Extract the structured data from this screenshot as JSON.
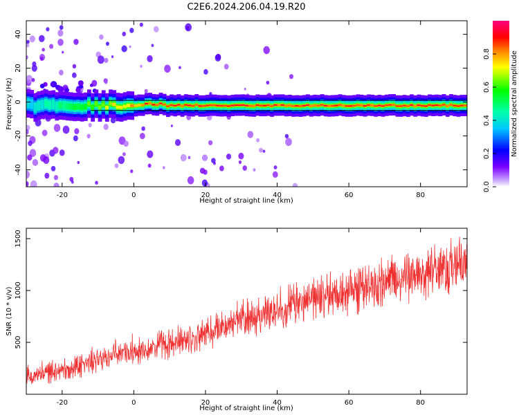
{
  "title": "C2E6.2024.206.04.19.R20",
  "colors": {
    "snr_line": "#f03030",
    "band_outline": "#000000",
    "axes": "#000000"
  },
  "chart_data": [
    {
      "type": "heatmap",
      "title": "",
      "xlabel": "Height of straight line (km)",
      "ylabel": "Frequency (Hz)",
      "xlim": [
        -30,
        93
      ],
      "ylim": [
        -50,
        48
      ],
      "xticks": [
        -20,
        0,
        20,
        40,
        60,
        80
      ],
      "yticks": [
        -40,
        -20,
        0,
        20,
        40
      ],
      "colormap": "rainbow (violet-blue-cyan-green-yellow-red-magenta)",
      "main_band": {
        "center_hz": -2,
        "outline_hz": [
          -5,
          1
        ],
        "x_range_km": [
          -30,
          93
        ],
        "peak_intensity": 0.95
      },
      "colorbar": {
        "label": "Normalized spectral amplitude",
        "range": [
          0,
          1
        ],
        "ticks": [
          0.0,
          0.2,
          0.4,
          0.6,
          0.8
        ]
      }
    },
    {
      "type": "line",
      "title": "",
      "xlabel": "Height of straight line (km)",
      "ylabel": "SNR (10 * v/v)",
      "xlim": [
        -30,
        93
      ],
      "ylim": [
        0,
        1600
      ],
      "xticks": [
        -20,
        0,
        20,
        40,
        60,
        80
      ],
      "yticks": [
        500,
        1000,
        1500
      ],
      "series": [
        {
          "x": [
            -30,
            -20,
            -10,
            0,
            10,
            20,
            30,
            40,
            50,
            60,
            70,
            80,
            93
          ],
          "y": [
            180,
            230,
            330,
            430,
            480,
            580,
            720,
            820,
            920,
            1000,
            1080,
            1160,
            1250
          ]
        }
      ]
    }
  ]
}
